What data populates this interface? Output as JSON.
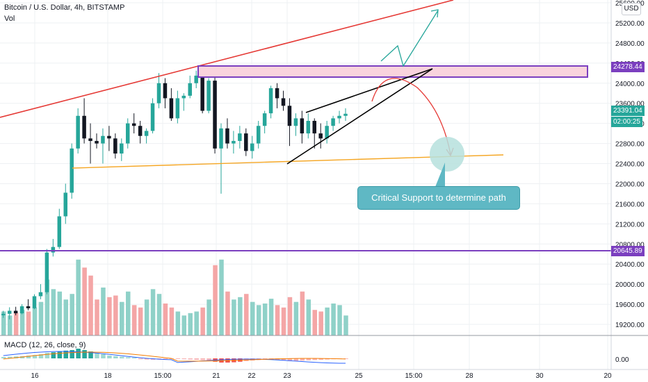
{
  "header": {
    "symbol_line": "Bitcoin / U.S. Dollar, 4h, BITSTAMP",
    "volume_label": "Vol",
    "macd_label": "MACD (12, 26, close, 9)",
    "currency": "USD"
  },
  "annotation": {
    "callout_text": "Critical Support to determine path"
  },
  "price_tags": {
    "resistance": "24278.44",
    "current": "23391.04",
    "countdown": "02:00:25",
    "lower_level": "20645.89"
  },
  "colors": {
    "bull": "#26a69a",
    "bear": "#131722",
    "volume_bull": "#8fd1c8",
    "volume_bear": "#f4a6a6",
    "resistance_box": "#7b3fbf",
    "trend_red": "#e53935",
    "support_orange": "#f5a623",
    "callout": "#5fb8c4",
    "current_tag": "#26a69a",
    "lower_tag": "#7b3fbf"
  },
  "chart_data": {
    "type": "candlestick",
    "title": "Bitcoin / U.S. Dollar, 4h, BITSTAMP",
    "price_axis_ticks": [
      25600,
      25200,
      24800,
      24400,
      24000,
      23600,
      23200,
      22800,
      22400,
      22000,
      21600,
      21200,
      20800,
      20400,
      20000,
      19600,
      19200
    ],
    "macd_axis_ticks": [
      "0.00"
    ],
    "time_axis_ticks": [
      "16",
      "18",
      "15:00",
      "21",
      "22",
      "23",
      "25",
      "15:00",
      "28",
      "30",
      "20"
    ],
    "ylim": [
      19000,
      25800
    ],
    "grid": true,
    "ohlc": [
      [
        19380,
        19470,
        19330,
        19410
      ],
      [
        19410,
        19540,
        19300,
        19470
      ],
      [
        19470,
        19550,
        19380,
        19420
      ],
      [
        19420,
        19600,
        19400,
        19560
      ],
      [
        19560,
        19700,
        19480,
        19520
      ],
      [
        19520,
        19800,
        19500,
        19760
      ],
      [
        19760,
        20000,
        19700,
        19840
      ],
      [
        19840,
        20700,
        19800,
        20630
      ],
      [
        20630,
        20900,
        20550,
        20740
      ],
      [
        20740,
        21500,
        20700,
        21350
      ],
      [
        21350,
        22000,
        21200,
        21820
      ],
      [
        21820,
        22800,
        21700,
        22700
      ],
      [
        22700,
        23500,
        22600,
        23350
      ],
      [
        23350,
        23700,
        22800,
        22900
      ],
      [
        22900,
        23200,
        22400,
        22850
      ],
      [
        22850,
        23000,
        22700,
        22800
      ],
      [
        22800,
        23100,
        22400,
        22950
      ],
      [
        22950,
        23150,
        22650,
        22900
      ],
      [
        22900,
        23000,
        22500,
        22600
      ],
      [
        22600,
        22900,
        22450,
        22800
      ],
      [
        22800,
        23300,
        22700,
        23200
      ],
      [
        23200,
        23400,
        23000,
        23150
      ],
      [
        23150,
        23250,
        22800,
        22950
      ],
      [
        22950,
        23100,
        22800,
        23050
      ],
      [
        23050,
        23700,
        23000,
        23600
      ],
      [
        23600,
        24200,
        23500,
        24000
      ],
      [
        24000,
        24100,
        23500,
        23700
      ],
      [
        23700,
        23900,
        23250,
        23300
      ],
      [
        23300,
        23850,
        23200,
        23700
      ],
      [
        23700,
        23800,
        23450,
        23750
      ],
      [
        23750,
        24150,
        23700,
        24000
      ],
      [
        24000,
        24250,
        23900,
        24150
      ],
      [
        24150,
        24200,
        23400,
        23450
      ],
      [
        23450,
        24100,
        23400,
        24050
      ],
      [
        24050,
        24150,
        22600,
        22700
      ],
      [
        22700,
        23200,
        21800,
        23100
      ],
      [
        23100,
        23300,
        22700,
        22800
      ],
      [
        22800,
        23050,
        22600,
        22850
      ],
      [
        22850,
        23150,
        22700,
        23000
      ],
      [
        23000,
        23100,
        22550,
        22650
      ],
      [
        22650,
        22950,
        22500,
        22800
      ],
      [
        22800,
        23250,
        22700,
        23150
      ],
      [
        23150,
        23450,
        23000,
        23400
      ],
      [
        23400,
        23950,
        23300,
        23900
      ],
      [
        23900,
        24000,
        23500,
        23700
      ],
      [
        23700,
        23850,
        23450,
        23550
      ],
      [
        23550,
        23700,
        22750,
        23150
      ],
      [
        23150,
        23400,
        22950,
        23300
      ],
      [
        23300,
        23450,
        22800,
        23000
      ],
      [
        23000,
        23400,
        22900,
        23250
      ],
      [
        23250,
        23300,
        22700,
        23000
      ],
      [
        23000,
        23200,
        22700,
        22900
      ],
      [
        22900,
        23250,
        22800,
        23150
      ],
      [
        23150,
        23350,
        23050,
        23300
      ],
      [
        23300,
        23450,
        23200,
        23350
      ],
      [
        23350,
        23500,
        23250,
        23391.04
      ]
    ],
    "volume": [
      0.3,
      0.25,
      0.28,
      0.32,
      0.3,
      0.35,
      0.42,
      0.7,
      0.58,
      0.55,
      0.45,
      0.52,
      0.95,
      0.85,
      0.75,
      0.45,
      0.6,
      0.48,
      0.5,
      0.42,
      0.55,
      0.38,
      0.35,
      0.45,
      0.58,
      0.52,
      0.4,
      0.35,
      0.3,
      0.25,
      0.28,
      0.3,
      0.35,
      0.45,
      0.88,
      0.95,
      0.55,
      0.45,
      0.48,
      0.52,
      0.42,
      0.38,
      0.4,
      0.46,
      0.38,
      0.35,
      0.48,
      0.42,
      0.55,
      0.45,
      0.32,
      0.3,
      0.35,
      0.4,
      0.38,
      0.25
    ],
    "macd_hist": [
      0.05,
      0.06,
      0.07,
      0.08,
      0.1,
      0.12,
      0.15,
      0.2,
      0.22,
      0.25,
      0.28,
      0.3,
      0.35,
      0.3,
      0.25,
      0.2,
      0.15,
      0.1,
      0.08,
      0.06,
      0.04,
      0.03,
      -0.03,
      -0.04,
      -0.05,
      -0.04,
      -0.03,
      -0.02,
      -0.02,
      -0.03,
      -0.04,
      -0.05,
      -0.06,
      -0.08,
      -0.12,
      -0.15,
      -0.15,
      -0.14,
      -0.12,
      -0.1,
      -0.08,
      -0.06,
      -0.05,
      -0.04,
      -0.05,
      -0.08,
      -0.1,
      -0.09,
      -0.08,
      -0.07,
      -0.06,
      -0.05,
      -0.04,
      -0.03,
      -0.02,
      -0.02
    ],
    "levels": {
      "resistance": 24278.44,
      "resistance_low": 24080,
      "support": 20645.89
    }
  }
}
